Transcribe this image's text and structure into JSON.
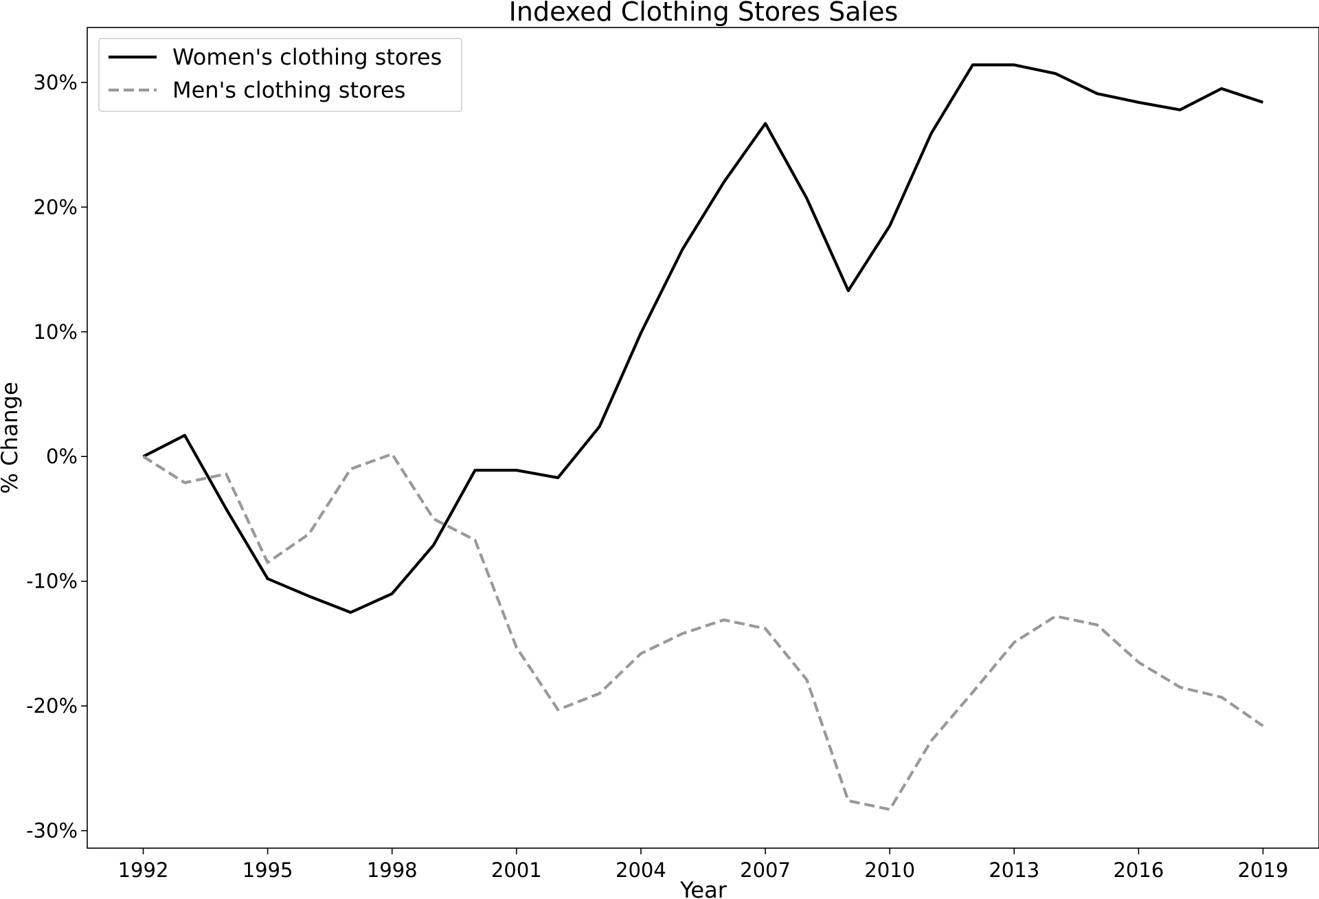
{
  "chart_data": {
    "type": "line",
    "title": "Indexed Clothing Stores Sales",
    "xlabel": "Year",
    "ylabel": "% Change",
    "x": [
      1992,
      1993,
      1994,
      1995,
      1996,
      1997,
      1998,
      1999,
      2000,
      2001,
      2002,
      2003,
      2004,
      2005,
      2006,
      2007,
      2008,
      2009,
      2010,
      2011,
      2012,
      2013,
      2014,
      2015,
      2016,
      2017,
      2018,
      2019
    ],
    "series": [
      {
        "name": "Women's clothing stores",
        "color": "#000000",
        "style": "solid",
        "values": [
          0.0,
          1.7,
          -4.2,
          -9.8,
          -11.2,
          -12.5,
          -11.0,
          -7.1,
          -1.1,
          -1.1,
          -1.7,
          2.4,
          9.9,
          16.6,
          22.0,
          26.7,
          20.7,
          13.3,
          18.5,
          25.9,
          31.4,
          31.4,
          30.7,
          29.1,
          28.4,
          27.8,
          29.5,
          28.4
        ],
        "legend_label": "Women's clothing stores"
      },
      {
        "name": "Men's clothing stores",
        "color": "#999999",
        "style": "dashed",
        "values": [
          0.0,
          -2.1,
          -1.4,
          -8.5,
          -6.2,
          -1.0,
          0.2,
          -5.0,
          -6.7,
          -15.3,
          -20.3,
          -19.0,
          -15.8,
          -14.2,
          -13.1,
          -13.8,
          -17.9,
          -27.6,
          -28.3,
          -22.8,
          -18.9,
          -14.9,
          -12.8,
          -13.5,
          -16.5,
          -18.5,
          -19.3,
          -21.6
        ],
        "legend_label": "Men's clothing stores"
      }
    ],
    "xlim": [
      1990.65,
      2020.35
    ],
    "ylim": [
      -31.4,
      34.4
    ],
    "xticks": [
      1992,
      1995,
      1998,
      2001,
      2004,
      2007,
      2010,
      2013,
      2016,
      2019
    ],
    "xtick_labels": [
      "1992",
      "1995",
      "1998",
      "2001",
      "2004",
      "2007",
      "2010",
      "2013",
      "2016",
      "2019"
    ],
    "yticks": [
      -30,
      -20,
      -10,
      0,
      10,
      20,
      30
    ],
    "ytick_labels": [
      "-30%",
      "-20%",
      "-10%",
      "0%",
      "10%",
      "20%",
      "30%"
    ],
    "grid": false,
    "legend_position": "top-left"
  }
}
